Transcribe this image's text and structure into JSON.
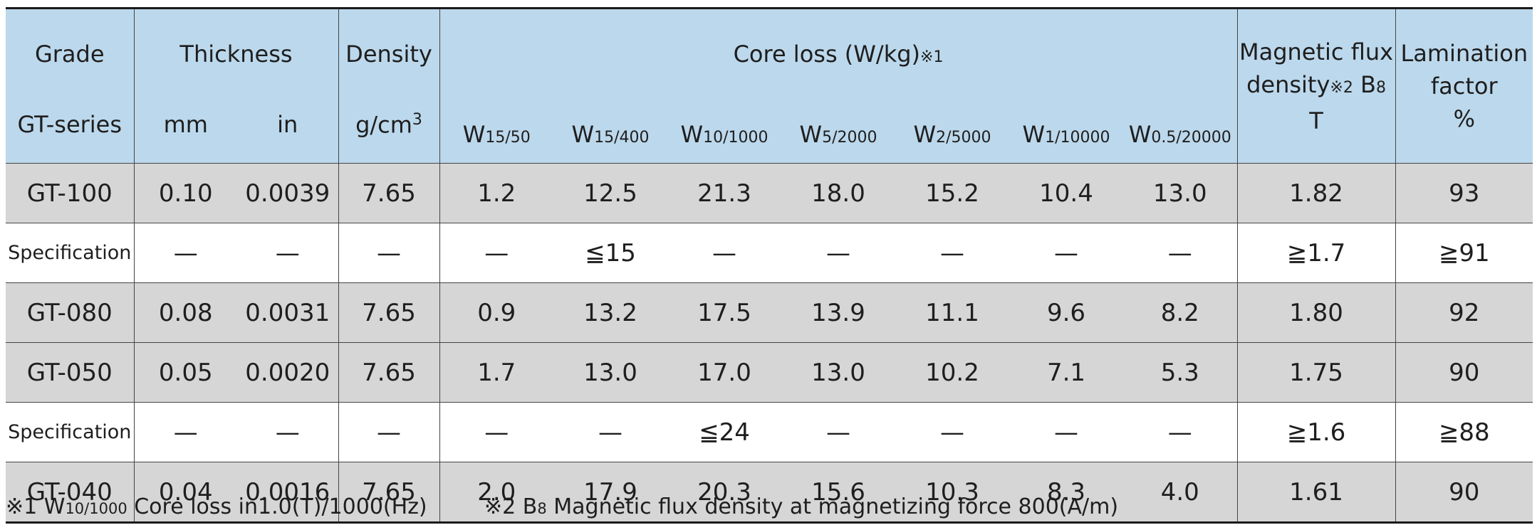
{
  "headers": {
    "grade_line1": "Grade",
    "grade_line2": "GT-series",
    "thickness": "Thickness",
    "mm": "mm",
    "in": "in",
    "density": "Density",
    "density_unit_base": "g/cm",
    "density_unit_sup": "3",
    "core_loss": "Core loss (W/kg)",
    "core_loss_note": "※1",
    "w_prefix": "W",
    "w_subs": [
      "15/50",
      "15/400",
      "10/1000",
      "5/2000",
      "2/5000",
      "1/10000",
      "0.5/20000"
    ],
    "flux_line1": "Magnetic flux",
    "flux_line2a": "density",
    "flux_line2_note": "※2",
    "flux_line2b": " B",
    "flux_line2_sub": "8",
    "flux_unit": "T",
    "lam_line1": "Lamination",
    "lam_line2": "factor",
    "lam_unit": "%"
  },
  "rows": [
    {
      "style": "grey",
      "grade": "GT-100",
      "mm": "0.10",
      "in": "0.0039",
      "density": "7.65",
      "w": [
        "1.2",
        "12.5",
        "21.3",
        "18.0",
        "15.2",
        "10.4",
        "13.0"
      ],
      "flux": "1.82",
      "lam": "93"
    },
    {
      "style": "white",
      "grade": "Specification",
      "mm": "—",
      "in": "—",
      "density": "—",
      "w": [
        "—",
        "≦15",
        "—",
        "—",
        "—",
        "—",
        "—"
      ],
      "flux": "≧1.7",
      "lam": "≧91"
    },
    {
      "style": "grey",
      "grade": "GT-080",
      "mm": "0.08",
      "in": "0.0031",
      "density": "7.65",
      "w": [
        "0.9",
        "13.2",
        "17.5",
        "13.9",
        "11.1",
        "9.6",
        "8.2"
      ],
      "flux": "1.80",
      "lam": "92"
    },
    {
      "style": "grey",
      "grade": "GT-050",
      "mm": "0.05",
      "in": "0.0020",
      "density": "7.65",
      "w": [
        "1.7",
        "13.0",
        "17.0",
        "13.0",
        "10.2",
        "7.1",
        "5.3"
      ],
      "flux": "1.75",
      "lam": "90"
    },
    {
      "style": "white",
      "grade": "Specification",
      "mm": "—",
      "in": "—",
      "density": "—",
      "w": [
        "—",
        "—",
        "≦24",
        "—",
        "—",
        "—",
        "—"
      ],
      "flux": "≧1.6",
      "lam": "≧88"
    },
    {
      "style": "grey",
      "grade": "GT-040",
      "mm": "0.04",
      "in": "0.0016",
      "density": "7.65",
      "w": [
        "2.0",
        "17.9",
        "20.3",
        "15.6",
        "10.3",
        "8.3",
        "4.0"
      ],
      "flux": "1.61",
      "lam": "90"
    }
  ],
  "footnotes": {
    "n1_mark": "※1 W",
    "n1_sub": "10/1000",
    "n1_text": " Core loss in1.0(T)/1000(Hz)",
    "n2_mark": "※2 B",
    "n2_sub": "8",
    "n2_text": " Magnetic flux density at magnetizing force 800(A/m)"
  }
}
